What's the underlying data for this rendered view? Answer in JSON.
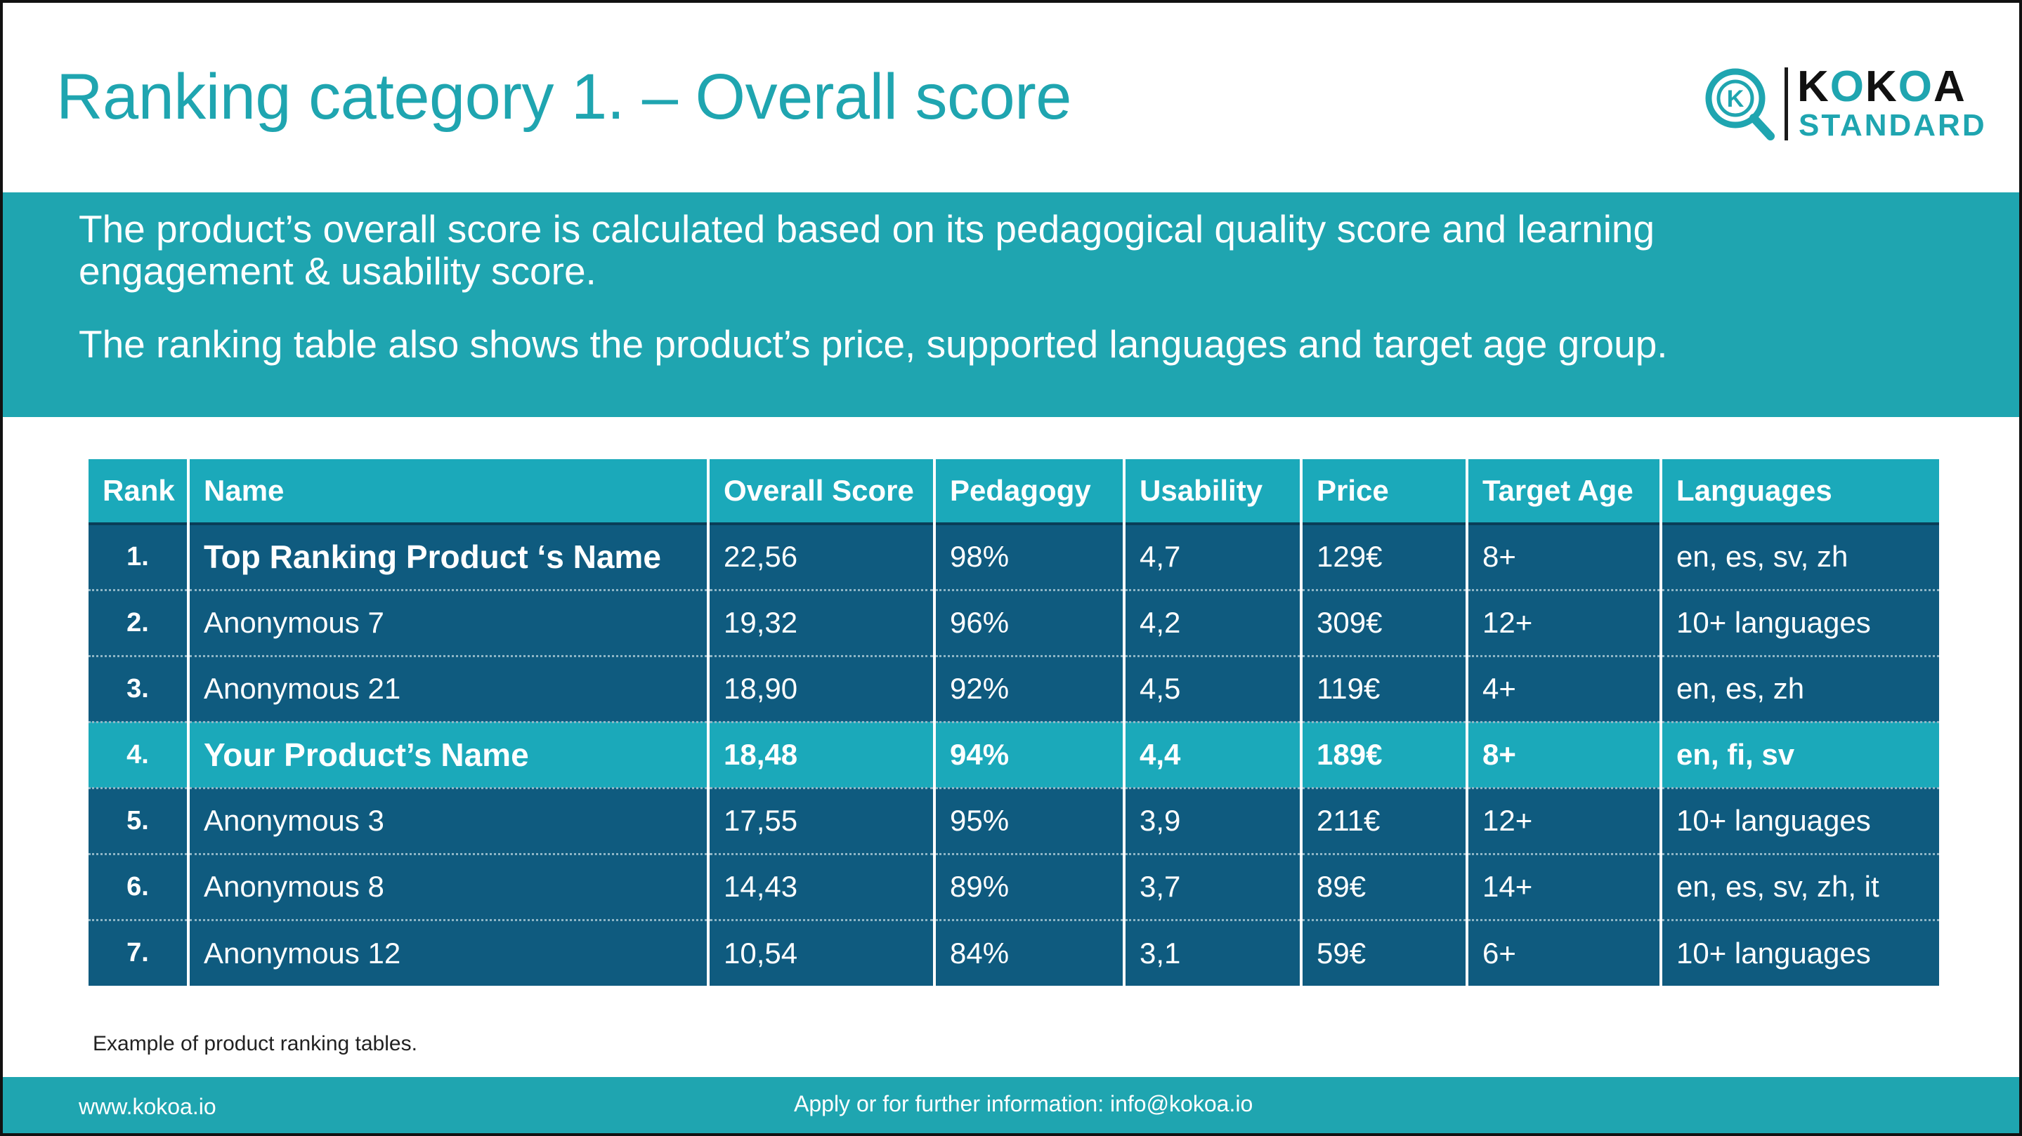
{
  "title": "Ranking category 1. – Overall score",
  "logo": {
    "word_part1": "K",
    "word_o1": "O",
    "word_part2": "K",
    "word_o2": "O",
    "word_part3": "A",
    "sub": "STANDARD",
    "icon_letter": "K"
  },
  "intro": {
    "p1": "The product’s overall score is calculated based on its pedagogical quality score and learning engagement & usability score.",
    "p2": "The ranking table also shows the product’s price, supported languages and target age group."
  },
  "table": {
    "headers": [
      "Rank",
      "Name",
      "Overall Score",
      "Pedagogy",
      "Usability",
      "Price",
      "Target Age",
      "Languages"
    ],
    "rows": [
      {
        "rank": "1.",
        "name": "Top Ranking Product ‘s Name",
        "score": "22,56",
        "pedagogy": "98%",
        "usability": "4,7",
        "price": "129€",
        "age": "8+",
        "languages": "en, es, sv, zh"
      },
      {
        "rank": "2.",
        "name": "Anonymous 7",
        "score": "19,32",
        "pedagogy": "96%",
        "usability": "4,2",
        "price": "309€",
        "age": "12+",
        "languages": "10+ languages"
      },
      {
        "rank": "3.",
        "name": "Anonymous 21",
        "score": "18,90",
        "pedagogy": "92%",
        "usability": "4,5",
        "price": "119€",
        "age": "4+",
        "languages": "en, es, zh"
      },
      {
        "rank": "4.",
        "name": "Your Product’s Name",
        "score": "18,48",
        "pedagogy": "94%",
        "usability": "4,4",
        "price": "189€",
        "age": "8+",
        "languages": "en, fi, sv"
      },
      {
        "rank": "5.",
        "name": "Anonymous 3",
        "score": "17,55",
        "pedagogy": "95%",
        "usability": "3,9",
        "price": "211€",
        "age": "12+",
        "languages": "10+ languages"
      },
      {
        "rank": "6.",
        "name": "Anonymous 8",
        "score": "14,43",
        "pedagogy": "89%",
        "usability": "3,7",
        "price": "89€",
        "age": "14+",
        "languages": "en, es, sv, zh, it"
      },
      {
        "rank": "7.",
        "name": "Anonymous 12",
        "score": "10,54",
        "pedagogy": "84%",
        "usability": "3,1",
        "price": "59€",
        "age": "6+",
        "languages": "10+ languages"
      }
    ]
  },
  "caption": "Example of product ranking tables.",
  "footer": {
    "site": "www.kokoa.io",
    "contact": "Apply or for further information: info@kokoa.io"
  },
  "colors": {
    "teal": "#1fa5b0",
    "header": "#1ba9ba",
    "row": "#0f5b7f"
  }
}
